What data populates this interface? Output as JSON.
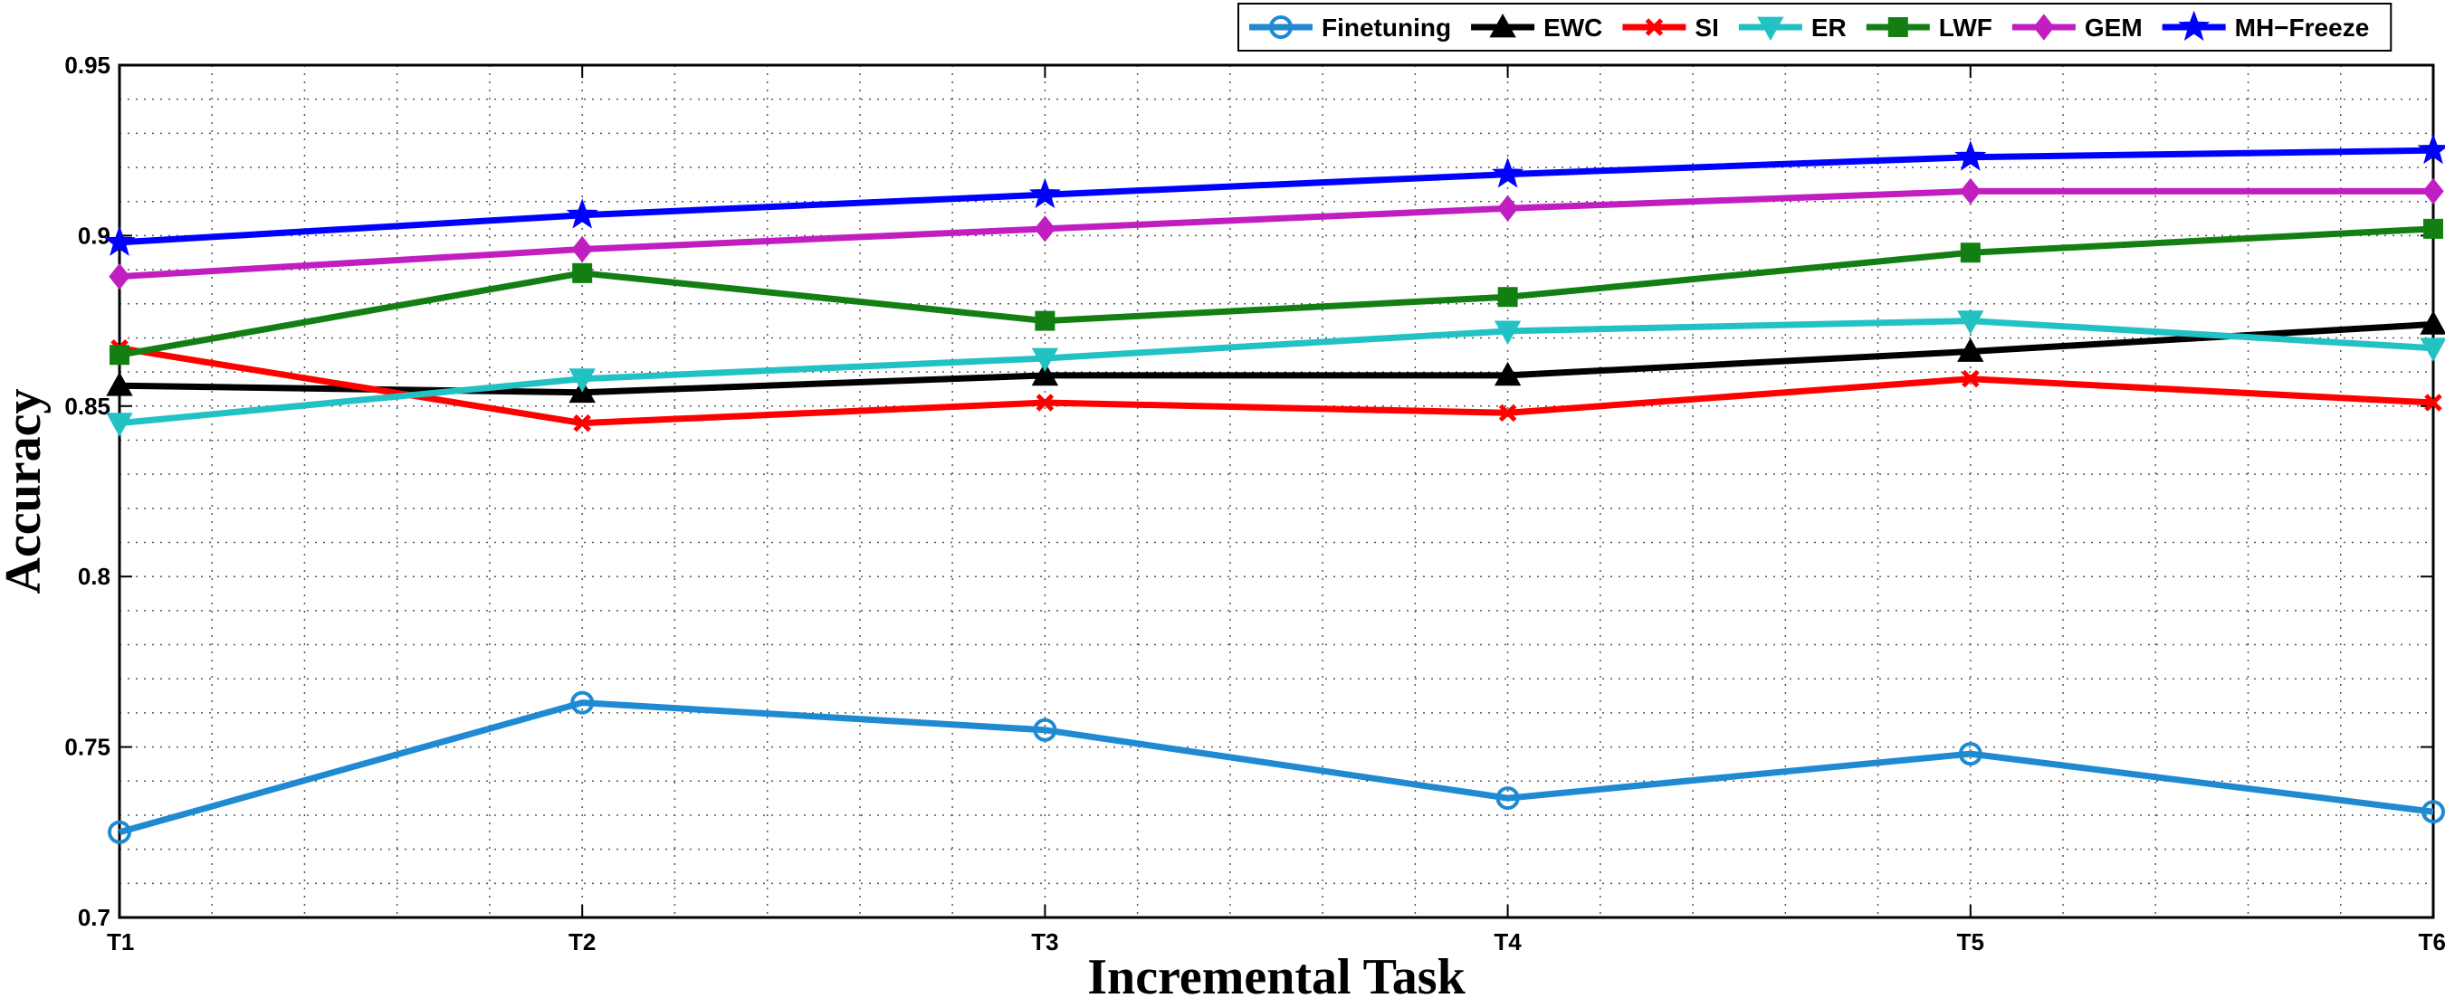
{
  "chart_data": {
    "type": "line",
    "xlabel": "Incremental Task",
    "ylabel": "Accuracy",
    "categories": [
      "T1",
      "T2",
      "T3",
      "T4",
      "T5",
      "T6"
    ],
    "ylim": [
      0.7,
      0.95
    ],
    "yticks": [
      0.7,
      0.75,
      0.8,
      0.85,
      0.9,
      0.95
    ],
    "ytick_labels": [
      "0.7",
      "0.75",
      "0.8",
      "0.85",
      "0.9",
      "0.95"
    ],
    "grid": true,
    "legend_position": "top-right",
    "series": [
      {
        "name": "Finetuning",
        "color": "#1f8ad1",
        "marker": "circle",
        "values": [
          0.725,
          0.763,
          0.755,
          0.735,
          0.748,
          0.731
        ]
      },
      {
        "name": "EWC",
        "color": "#000000",
        "marker": "triangle-up",
        "values": [
          0.856,
          0.854,
          0.859,
          0.859,
          0.866,
          0.874
        ]
      },
      {
        "name": "SI",
        "color": "#ff0000",
        "marker": "x",
        "values": [
          0.867,
          0.845,
          0.851,
          0.848,
          0.858,
          0.851
        ]
      },
      {
        "name": "ER",
        "color": "#22c1c3",
        "marker": "triangle-down",
        "values": [
          0.845,
          0.858,
          0.864,
          0.872,
          0.875,
          0.867
        ]
      },
      {
        "name": "LWF",
        "color": "#137f13",
        "marker": "square",
        "values": [
          0.865,
          0.889,
          0.875,
          0.882,
          0.895,
          0.902
        ]
      },
      {
        "name": "GEM",
        "color": "#c01ec0",
        "marker": "diamond",
        "values": [
          0.888,
          0.896,
          0.902,
          0.908,
          0.913,
          0.913
        ]
      },
      {
        "name": "MH−Freeze",
        "color": "#0000ff",
        "marker": "star",
        "values": [
          0.898,
          0.906,
          0.912,
          0.918,
          0.923,
          0.925
        ]
      }
    ]
  }
}
